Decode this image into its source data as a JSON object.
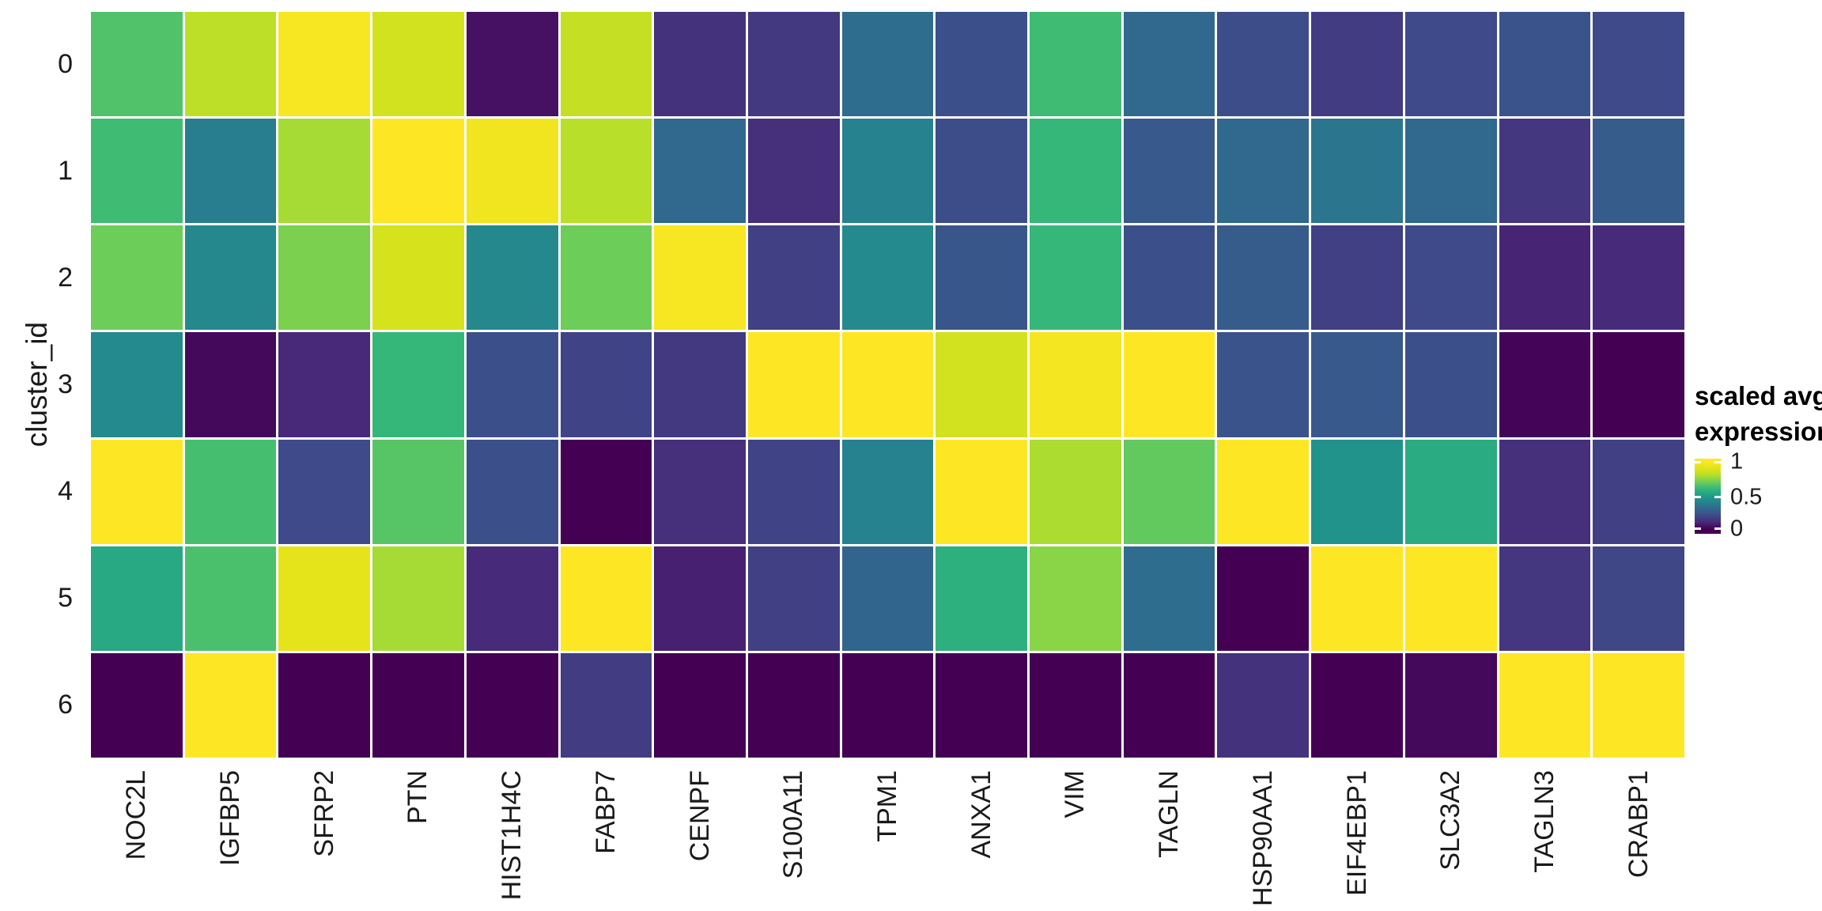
{
  "y_axis": {
    "title": "cluster_id",
    "ticks": [
      "0",
      "1",
      "2",
      "3",
      "4",
      "5",
      "6"
    ]
  },
  "x_axis": {
    "labels": [
      "NOC2L",
      "IGFBP5",
      "SFRP2",
      "PTN",
      "HIST1H4C",
      "FABP7",
      "CENPF",
      "S100A11",
      "TPM1",
      "ANXA1",
      "VIM",
      "TAGLN",
      "HSP90AA1",
      "EIF4EBP1",
      "SLC3A2",
      "TAGLN3",
      "CRABP1"
    ]
  },
  "legend": {
    "title_line1": "scaled avg.",
    "title_line2": "expression",
    "ticks": [
      {
        "label": "1",
        "value": 1.0,
        "pos": 0.957
      },
      {
        "label": "0.5",
        "value": 0.5,
        "pos": 0.489
      },
      {
        "label": "0",
        "value": 0.0,
        "pos": 0.064
      }
    ]
  },
  "colors": {
    "background": "#ffffff",
    "text": "#1a1a1a",
    "cell_gap": "#ffffff",
    "viridis_stops": [
      [
        68,
        1,
        84
      ],
      [
        72,
        40,
        120
      ],
      [
        62,
        74,
        137
      ],
      [
        49,
        104,
        142
      ],
      [
        38,
        130,
        142
      ],
      [
        31,
        158,
        137
      ],
      [
        53,
        183,
        121
      ],
      [
        109,
        205,
        89
      ],
      [
        180,
        222,
        44
      ],
      [
        223,
        227,
        24
      ],
      [
        253,
        231,
        37
      ]
    ]
  },
  "chart_data": {
    "type": "heatmap",
    "title": "",
    "xlabel": "",
    "ylabel": "cluster_id",
    "value_label": "scaled avg. expression",
    "colormap": "viridis",
    "zlim": [
      0,
      1
    ],
    "grid": false,
    "legend_position": "right",
    "x_categories": [
      "NOC2L",
      "IGFBP5",
      "SFRP2",
      "PTN",
      "HIST1H4C",
      "FABP7",
      "CENPF",
      "S100A11",
      "TPM1",
      "ANXA1",
      "VIM",
      "TAGLN",
      "HSP90AA1",
      "EIF4EBP1",
      "SLC3A2",
      "TAGLN3",
      "CRABP1"
    ],
    "y_categories": [
      "0",
      "1",
      "2",
      "3",
      "4",
      "5",
      "6"
    ],
    "values": [
      [
        0.65,
        0.82,
        0.98,
        0.87,
        0.04,
        0.84,
        0.13,
        0.15,
        0.32,
        0.22,
        0.62,
        0.3,
        0.21,
        0.16,
        0.2,
        0.23,
        0.2
      ],
      [
        0.62,
        0.38,
        0.78,
        1.0,
        0.96,
        0.81,
        0.3,
        0.12,
        0.4,
        0.21,
        0.6,
        0.25,
        0.3,
        0.35,
        0.3,
        0.14,
        0.26
      ],
      [
        0.7,
        0.42,
        0.72,
        0.88,
        0.42,
        0.7,
        0.98,
        0.17,
        0.43,
        0.24,
        0.6,
        0.22,
        0.26,
        0.17,
        0.2,
        0.09,
        0.11
      ],
      [
        0.43,
        0.02,
        0.1,
        0.6,
        0.22,
        0.18,
        0.15,
        1.0,
        1.0,
        0.87,
        0.97,
        1.0,
        0.23,
        0.25,
        0.22,
        0.01,
        0.0
      ],
      [
        1.0,
        0.63,
        0.2,
        0.66,
        0.22,
        0.0,
        0.12,
        0.18,
        0.4,
        1.0,
        0.79,
        0.68,
        1.0,
        0.46,
        0.55,
        0.12,
        0.17
      ],
      [
        0.54,
        0.64,
        0.92,
        0.78,
        0.11,
        1.0,
        0.08,
        0.17,
        0.29,
        0.57,
        0.74,
        0.32,
        0.0,
        1.0,
        1.0,
        0.14,
        0.19
      ],
      [
        0.0,
        1.0,
        0.0,
        0.0,
        0.0,
        0.16,
        0.0,
        0.0,
        0.0,
        0.0,
        0.0,
        0.0,
        0.13,
        0.0,
        0.02,
        1.0,
        1.0
      ]
    ]
  }
}
